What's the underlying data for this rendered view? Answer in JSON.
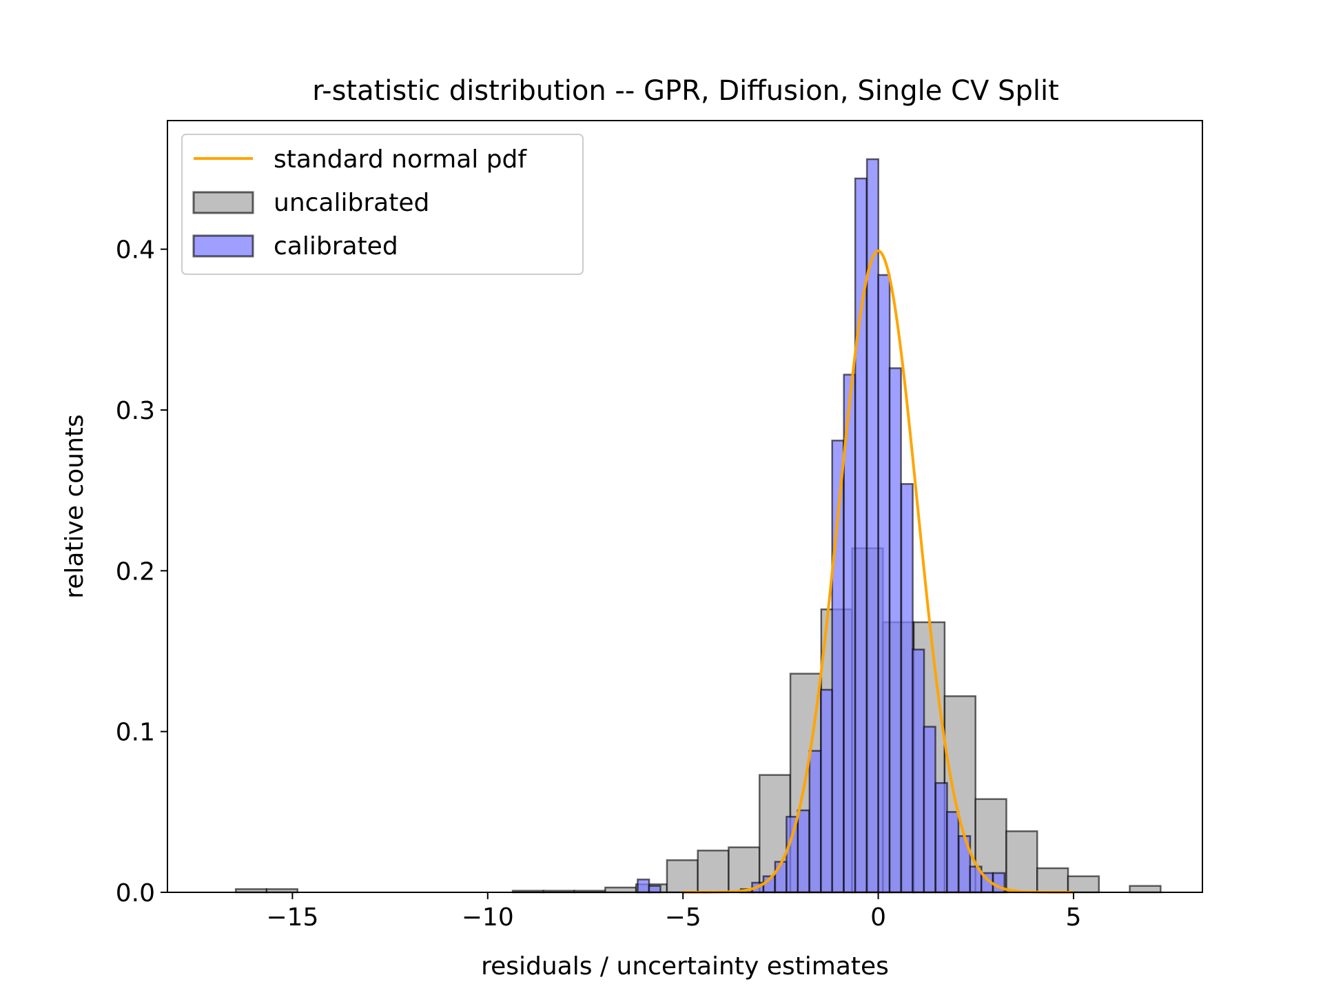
{
  "chart_data": {
    "type": "bar",
    "title": "r-statistic distribution -- GPR, Diffusion, Single CV Split",
    "xlabel": "residuals / uncertainty estimates",
    "ylabel": "relative counts",
    "xlim": [
      -18.2,
      8.3
    ],
    "ylim": [
      0,
      0.48
    ],
    "xticks": [
      -15,
      -10,
      -5,
      0,
      5
    ],
    "xtick_labels": [
      "−15",
      "−10",
      "−5",
      "0",
      "5"
    ],
    "yticks": [
      0.0,
      0.1,
      0.2,
      0.3,
      0.4
    ],
    "ytick_labels": [
      "0.0",
      "0.1",
      "0.2",
      "0.3",
      "0.4"
    ],
    "grid": false,
    "legend_position": "upper-left",
    "legend": [
      "standard normal pdf",
      "uncalibrated",
      "calibrated"
    ],
    "colors": {
      "pdf_line": "#ffa500",
      "uncalibrated_fill": "#bfbfbf",
      "calibrated_fill": "#7f7fff",
      "bar_edge": "#000000"
    },
    "series": [
      {
        "name": "uncalibrated",
        "kind": "histogram",
        "bin_width": 0.79,
        "bin_left": [
          -16.45,
          -15.66,
          -9.36,
          -8.57,
          -7.78,
          -6.99,
          -6.2,
          -5.41,
          -4.62,
          -3.83,
          -3.04,
          -2.25,
          -1.46,
          -0.67,
          0.12,
          0.91,
          1.7,
          2.49,
          3.28,
          4.07,
          4.86,
          6.44
        ],
        "values": [
          0.002,
          0.002,
          0.001,
          0.001,
          0.001,
          0.003,
          0.005,
          0.02,
          0.026,
          0.028,
          0.073,
          0.136,
          0.176,
          0.214,
          0.168,
          0.168,
          0.122,
          0.058,
          0.038,
          0.015,
          0.01,
          0.004
        ]
      },
      {
        "name": "calibrated",
        "kind": "histogram",
        "bin_width": 0.293,
        "bin_left": [
          -6.16,
          -5.87,
          -3.52,
          -3.23,
          -2.94,
          -2.64,
          -2.35,
          -2.06,
          -1.76,
          -1.47,
          -1.18,
          -0.88,
          -0.59,
          -0.29,
          0.0,
          0.29,
          0.59,
          0.88,
          1.17,
          1.47,
          1.76,
          2.06,
          2.35,
          2.64,
          2.94
        ],
        "values": [
          0.008,
          0.004,
          0.002,
          0.006,
          0.01,
          0.019,
          0.047,
          0.051,
          0.088,
          0.126,
          0.281,
          0.322,
          0.444,
          0.456,
          0.384,
          0.326,
          0.254,
          0.151,
          0.103,
          0.068,
          0.05,
          0.035,
          0.016,
          0.012,
          0.012
        ]
      },
      {
        "name": "standard normal pdf",
        "kind": "line",
        "function": "standard normal pdf",
        "x_range": [
          -5,
          5
        ]
      }
    ]
  }
}
